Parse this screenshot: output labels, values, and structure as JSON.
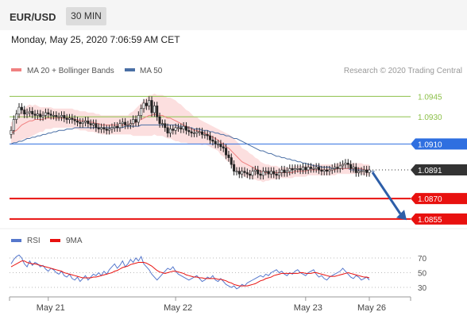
{
  "header": {
    "symbol": "EUR/USD",
    "timeframe": "30 MIN",
    "datetime": "Monday, May 25, 2020 7:06:59 AM CET"
  },
  "colors": {
    "ma20": "#f08080",
    "ma50": "#4a6fa5",
    "bands_fill": "#fbd9d9",
    "resistance": "#8dc04a",
    "pivot": "#2f6fe0",
    "support": "#e8110f",
    "last": "#333333",
    "candle": "#222222",
    "rsi": "#5577cc",
    "rsi_ma": "#e8110f"
  },
  "chart_data": [
    {
      "type": "candlestick",
      "title": "",
      "legend": [
        {
          "name": "MA 20 + Bollinger Bands",
          "color": "#f08080"
        },
        {
          "name": "MA 50",
          "color": "#4a6fa5"
        }
      ],
      "watermark": "Research © 2020 Trading Central",
      "y_range": [
        1.0845,
        1.0965
      ],
      "x_ticks": [
        {
          "label": "May 21",
          "i": 14
        },
        {
          "label": "May 22",
          "i": 62
        },
        {
          "label": "May 23",
          "i": 111
        },
        {
          "label": "May 26",
          "i": 135
        }
      ],
      "close": [
        1.092,
        1.0928,
        1.0932,
        1.0937,
        1.0935,
        1.0932,
        1.0933,
        1.0934,
        1.0932,
        1.0931,
        1.0932,
        1.093,
        1.0931,
        1.0933,
        1.0932,
        1.0931,
        1.0931,
        1.093,
        1.093,
        1.0931,
        1.0929,
        1.0928,
        1.0929,
        1.0928,
        1.0927,
        1.0926,
        1.0925,
        1.0926,
        1.0927,
        1.0925,
        1.0924,
        1.0925,
        1.0922,
        1.0921,
        1.0922,
        1.0921,
        1.092,
        1.0921,
        1.0922,
        1.0923,
        1.0922,
        1.0925,
        1.0926,
        1.0924,
        1.0924,
        1.0925,
        1.0928,
        1.0926,
        1.0931,
        1.0936,
        1.094,
        1.0938,
        1.0942,
        1.0933,
        1.0938,
        1.093,
        1.0925,
        1.0925,
        1.0922,
        1.0918,
        1.0921,
        1.092,
        1.0922,
        1.0922,
        1.0921,
        1.0923,
        1.092,
        1.0919,
        1.0918,
        1.0918,
        1.0919,
        1.0919,
        1.0917,
        1.0917,
        1.0916,
        1.0913,
        1.0912,
        1.091,
        1.091,
        1.0908,
        1.0907,
        1.0902,
        1.09,
        1.0895,
        1.089,
        1.089,
        1.0888,
        1.089,
        1.0889,
        1.0888,
        1.0887,
        1.089,
        1.0891,
        1.0888,
        1.0887,
        1.089,
        1.089,
        1.0888,
        1.089,
        1.0888,
        1.0887,
        1.0889,
        1.0891,
        1.0889,
        1.089,
        1.0892,
        1.0891,
        1.0892,
        1.0892,
        1.0891,
        1.0893,
        1.0891,
        1.0893,
        1.0892,
        1.0892,
        1.0893,
        1.0891,
        1.089,
        1.0891,
        1.089,
        1.0891,
        1.0892,
        1.0893,
        1.0892,
        1.0894,
        1.0895,
        1.0896,
        1.0895,
        1.0892,
        1.0893,
        1.0889,
        1.089,
        1.089,
        1.0891,
        1.0889,
        1.0891
      ],
      "ma20": [
        1.0918,
        1.0919,
        1.092,
        1.0922,
        1.0924,
        1.0925,
        1.0926,
        1.0927,
        1.0927,
        1.0928,
        1.0928,
        1.0928,
        1.0928,
        1.0929,
        1.0929,
        1.0929,
        1.0929,
        1.0929,
        1.0929,
        1.0929,
        1.0929,
        1.0929,
        1.0929,
        1.0929,
        1.0928,
        1.0928,
        1.0927,
        1.0927,
        1.0927,
        1.0926,
        1.0926,
        1.0926,
        1.0925,
        1.0925,
        1.0924,
        1.0924,
        1.0924,
        1.0924,
        1.0924,
        1.0924,
        1.0924,
        1.0924,
        1.0924,
        1.0924,
        1.0924,
        1.0925,
        1.0925,
        1.0926,
        1.0927,
        1.0928,
        1.0929,
        1.093,
        1.0931,
        1.0931,
        1.0932,
        1.0931,
        1.0931,
        1.0931,
        1.093,
        1.0929,
        1.0929,
        1.0928,
        1.0927,
        1.0926,
        1.0925,
        1.0924,
        1.0923,
        1.0922,
        1.0921,
        1.092,
        1.092,
        1.0919,
        1.0918,
        1.0918,
        1.0917,
        1.0916,
        1.0915,
        1.0914,
        1.0913,
        1.0911,
        1.091,
        1.0908,
        1.0907,
        1.0905,
        1.0903,
        1.0901,
        1.0899,
        1.0897,
        1.0896,
        1.0895,
        1.0894,
        1.0893,
        1.0892,
        1.0891,
        1.089,
        1.0889,
        1.0889,
        1.0889,
        1.0889,
        1.0889,
        1.0889,
        1.0889,
        1.0889,
        1.0889,
        1.0889,
        1.0889,
        1.0889,
        1.089,
        1.089,
        1.089,
        1.089,
        1.089,
        1.0891,
        1.0891,
        1.0891,
        1.0891,
        1.0891,
        1.0891,
        1.0891,
        1.0891,
        1.0891,
        1.0891,
        1.0891,
        1.0892,
        1.0892,
        1.0892,
        1.0892,
        1.0892,
        1.0892,
        1.0892,
        1.0892,
        1.0892,
        1.0892,
        1.0891,
        1.0891,
        1.0891
      ],
      "ma50": [
        1.091,
        1.0911,
        1.0911,
        1.0912,
        1.0912,
        1.0913,
        1.0914,
        1.0914,
        1.0915,
        1.0915,
        1.0916,
        1.0916,
        1.0917,
        1.0917,
        1.0918,
        1.0918,
        1.0919,
        1.0919,
        1.092,
        1.092,
        1.092,
        1.0921,
        1.0921,
        1.0921,
        1.0922,
        1.0922,
        1.0922,
        1.0922,
        1.0922,
        1.0922,
        1.0922,
        1.0922,
        1.0922,
        1.0922,
        1.0922,
        1.0922,
        1.0922,
        1.0922,
        1.0922,
        1.0922,
        1.0922,
        1.0922,
        1.0922,
        1.0923,
        1.0923,
        1.0923,
        1.0923,
        1.0923,
        1.0923,
        1.0924,
        1.0924,
        1.0924,
        1.0924,
        1.0924,
        1.0924,
        1.0924,
        1.0924,
        1.0924,
        1.0924,
        1.0924,
        1.0924,
        1.0924,
        1.0924,
        1.0923,
        1.0923,
        1.0923,
        1.0922,
        1.0922,
        1.0922,
        1.0921,
        1.0921,
        1.0921,
        1.092,
        1.092,
        1.092,
        1.0919,
        1.0919,
        1.0918,
        1.0918,
        1.0917,
        1.0917,
        1.0916,
        1.0916,
        1.0915,
        1.0914,
        1.0914,
        1.0913,
        1.0912,
        1.0911,
        1.091,
        1.0909,
        1.0908,
        1.0907,
        1.0906,
        1.0905,
        1.0905,
        1.0904,
        1.0903,
        1.0903,
        1.0902,
        1.0901,
        1.0901,
        1.09,
        1.09,
        1.0899,
        1.0899,
        1.0898,
        1.0898,
        1.0897,
        1.0897,
        1.0896,
        1.0896,
        1.0895,
        1.0895,
        1.0894,
        1.0894,
        1.0894,
        1.0893,
        1.0893,
        1.0893,
        1.0893,
        1.0892,
        1.0892,
        1.0892,
        1.0892,
        1.0892,
        1.0892,
        1.0892,
        1.0891,
        1.0891,
        1.0891,
        1.0891,
        1.0891,
        1.0891,
        1.0891,
        1.089,
        1.089,
        1.089
      ],
      "band_width": [
        8,
        8,
        9,
        10,
        11,
        11,
        12,
        12,
        11,
        11,
        10,
        9,
        9,
        8,
        8,
        8,
        7,
        7,
        7,
        7,
        7,
        7,
        7,
        7,
        7,
        7,
        7,
        7,
        7,
        7,
        7,
        7,
        7,
        7,
        7,
        7,
        7,
        7,
        7,
        7,
        7,
        7,
        7,
        7,
        7,
        8,
        9,
        10,
        11,
        12,
        13,
        14,
        15,
        15,
        15,
        15,
        15,
        15,
        15,
        15,
        15,
        15,
        15,
        14,
        14,
        13,
        12,
        12,
        11,
        10,
        10,
        9,
        9,
        8,
        8,
        8,
        8,
        8,
        8,
        9,
        9,
        10,
        10,
        11,
        11,
        11,
        11,
        10,
        10,
        10,
        9,
        9,
        8,
        8,
        7,
        7,
        6,
        6,
        5,
        5,
        5,
        4,
        4,
        4,
        4,
        4,
        4,
        4,
        4,
        4,
        4,
        4,
        4,
        4,
        4,
        4,
        4,
        4,
        4,
        4,
        4,
        4,
        4,
        4,
        4,
        4,
        4,
        4,
        4,
        4,
        4,
        4,
        4,
        4,
        4,
        4,
        4,
        4
      ],
      "levels": [
        {
          "value": 1.0945,
          "label": "1.0945",
          "kind": "resistance"
        },
        {
          "value": 1.093,
          "label": "1.0930",
          "kind": "resistance"
        },
        {
          "value": 1.091,
          "label": "1.0910",
          "kind": "pivot"
        },
        {
          "value": 1.0891,
          "label": "1.0891",
          "kind": "last"
        },
        {
          "value": 1.087,
          "label": "1.0870",
          "kind": "support"
        },
        {
          "value": 1.0855,
          "label": "1.0855",
          "kind": "support"
        }
      ],
      "forecast_target": 1.086
    },
    {
      "type": "line",
      "title": "",
      "legend": [
        {
          "name": "RSI",
          "color": "#5577cc"
        },
        {
          "name": "9MA",
          "color": "#e8110f"
        }
      ],
      "y_range": [
        20,
        80
      ],
      "y_ticks": [
        "70",
        "50",
        "30"
      ],
      "rsi": [
        62,
        68,
        72,
        74,
        70,
        62,
        58,
        66,
        60,
        64,
        62,
        58,
        60,
        55,
        52,
        56,
        54,
        50,
        48,
        52,
        46,
        44,
        48,
        42,
        40,
        44,
        38,
        42,
        46,
        40,
        44,
        48,
        46,
        50,
        46,
        52,
        48,
        54,
        58,
        62,
        56,
        60,
        66,
        58,
        62,
        68,
        64,
        70,
        66,
        72,
        62,
        58,
        54,
        48,
        44,
        40,
        44,
        48,
        52,
        56,
        54,
        58,
        52,
        48,
        46,
        44,
        42,
        40,
        42,
        44,
        46,
        42,
        38,
        40,
        44,
        42,
        46,
        40,
        38,
        42,
        38,
        34,
        32,
        30,
        32,
        28,
        30,
        34,
        32,
        36,
        38,
        40,
        42,
        44,
        46,
        44,
        48,
        46,
        50,
        52,
        54,
        50,
        52,
        48,
        46,
        50,
        48,
        52,
        54,
        50,
        48,
        46,
        50,
        52,
        54,
        48,
        44,
        46,
        42,
        40,
        44,
        46,
        48,
        50,
        52,
        56,
        52,
        48,
        44,
        42,
        46,
        44,
        40,
        42,
        44,
        40
      ],
      "ma9": [
        58,
        60,
        62,
        64,
        66,
        66,
        64,
        63,
        62,
        62,
        61,
        60,
        59,
        58,
        57,
        56,
        55,
        54,
        53,
        52,
        50,
        49,
        48,
        47,
        46,
        45,
        44,
        43,
        43,
        43,
        43,
        44,
        44,
        45,
        46,
        47,
        48,
        49,
        50,
        52,
        53,
        55,
        57,
        58,
        59,
        61,
        62,
        63,
        64,
        64,
        64,
        63,
        61,
        59,
        56,
        53,
        51,
        50,
        49,
        50,
        51,
        52,
        52,
        51,
        50,
        49,
        47,
        46,
        45,
        44,
        44,
        43,
        43,
        42,
        42,
        42,
        42,
        42,
        41,
        41,
        40,
        39,
        37,
        36,
        34,
        33,
        32,
        32,
        32,
        32,
        33,
        34,
        35,
        37,
        39,
        40,
        42,
        43,
        44,
        46,
        47,
        48,
        49,
        49,
        49,
        49,
        49,
        49,
        49,
        50,
        50,
        49,
        49,
        49,
        50,
        50,
        49,
        48,
        47,
        46,
        45,
        45,
        45,
        46,
        47,
        48,
        49,
        50,
        49,
        48,
        47,
        46,
        45,
        44,
        44,
        43
      ],
      "x_ticks": [
        "May 21",
        "May 22",
        "May 23",
        "May 26"
      ]
    }
  ]
}
